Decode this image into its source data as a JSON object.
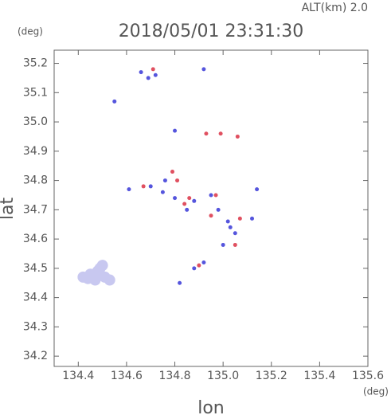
{
  "chart_data": {
    "type": "scatter",
    "title": "2018/05/01 23:31:30",
    "annotation": "ALT(km) 2.0",
    "y_unit": "(deg)",
    "x_unit": "(deg)",
    "xlabel": "lon",
    "ylabel": "lat",
    "xlim": [
      134.3,
      135.6
    ],
    "ylim": [
      34.165,
      35.245
    ],
    "xticks": [
      134.4,
      134.6,
      134.8,
      {
        "value": 135.0,
        "label": "135.0"
      },
      135.2,
      135.4,
      135.6
    ],
    "yticks": [
      {
        "value": 34.2,
        "label": "34.2"
      },
      34.3,
      34.4,
      34.5,
      34.6,
      34.7,
      34.8,
      34.9,
      {
        "value": 35.0,
        "label": "35.0"
      },
      35.1,
      35.2
    ],
    "series": [
      {
        "color": "#c8c8f0",
        "size": 7,
        "x": [
          134.42,
          134.45,
          134.48,
          134.5,
          134.47,
          134.51,
          134.53,
          134.49,
          134.44
        ],
        "values": [
          34.47,
          34.48,
          34.49,
          34.51,
          34.46,
          34.47,
          34.46,
          34.5,
          34.465
        ]
      },
      {
        "color": "#5555dd",
        "size": 2.5,
        "x": [
          134.66,
          134.69,
          134.72,
          134.55,
          134.8,
          134.61,
          134.7,
          134.75,
          134.8,
          134.85,
          134.88,
          134.95,
          134.98,
          135.02,
          135.05,
          135.0,
          134.92,
          134.88,
          134.82,
          135.14,
          135.12,
          134.76,
          134.92,
          135.03
        ],
        "values": [
          35.17,
          35.15,
          35.16,
          35.07,
          34.97,
          34.77,
          34.78,
          34.76,
          34.74,
          34.7,
          34.73,
          34.75,
          34.7,
          34.66,
          34.62,
          34.58,
          34.52,
          34.5,
          34.45,
          34.77,
          34.67,
          34.8,
          35.18,
          34.64
        ]
      },
      {
        "color": "#e05060",
        "size": 2.5,
        "x": [
          134.71,
          134.67,
          134.79,
          134.81,
          134.93,
          134.99,
          135.06,
          134.86,
          134.97,
          135.05,
          134.9,
          134.84,
          134.95,
          135.07
        ],
        "values": [
          35.18,
          34.78,
          34.83,
          34.8,
          34.96,
          34.96,
          34.95,
          34.74,
          34.75,
          34.58,
          34.51,
          34.72,
          34.68,
          34.67
        ]
      }
    ]
  }
}
